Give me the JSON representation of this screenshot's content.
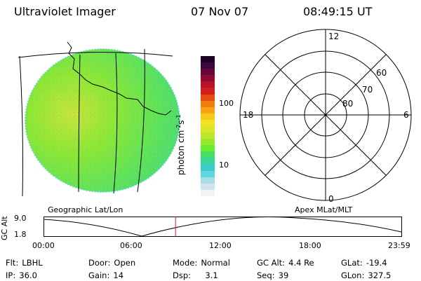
{
  "header": {
    "title": "Ultraviolet Imager",
    "date": "07 Nov 07",
    "time": "08:49:15 UT"
  },
  "colorbar": {
    "label": "photon cm",
    "label_sup1": "-2",
    "label_s": "s",
    "label_sup2": "-1",
    "ticks": [
      "100",
      "10"
    ],
    "colors": [
      "#f4f4f4",
      "#d0e4ea",
      "#a8dde8",
      "#5fd6e0",
      "#3ec8d0",
      "#39d7a0",
      "#46e060",
      "#6bea33",
      "#95e82b",
      "#bde52a",
      "#dbe428",
      "#f0e226",
      "#f8c718",
      "#f8a310",
      "#f27e10",
      "#e44c10",
      "#d51d1d",
      "#b81228",
      "#8f0a30",
      "#66083b",
      "#3a0a3c",
      "#1a0422"
    ]
  },
  "geo_label": "Geographic Lat/Lon",
  "apex_label": "Apex MLat/MLT",
  "polar": {
    "mlt_labels": {
      "top": "12",
      "left": "18",
      "right": "6",
      "bottom": "0"
    },
    "lat_labels": [
      "60",
      "70",
      "80"
    ]
  },
  "altitude_plot": {
    "ylabel": "GC Alt",
    "ytick_top": "9.0",
    "ytick_bottom": "1.8",
    "xticks": [
      "00:00",
      "06:00",
      "12:00",
      "18:00",
      "23:59"
    ],
    "current_time_fraction": 0.368,
    "marker_color": "#d01c1c"
  },
  "status": {
    "filter_label": "Flt:",
    "filter_value": "LBHL",
    "door_label": "Door:",
    "door_value": "Open",
    "mode_label": "Mode:",
    "mode_value": "Normal",
    "gcalt_label": "GC Alt:",
    "gcalt_value": "4.4 Re",
    "glat_label": "GLat:",
    "glat_value": "-19.4",
    "ip_label": "IP:",
    "ip_value": "36.0",
    "gain_label": "Gain:",
    "gain_value": "14",
    "dsp_label": "Dsp:",
    "dsp_value": "3.1",
    "seq_label": "Seq:",
    "seq_value": "39",
    "glon_label": "GLon:",
    "glon_value": "327.5"
  }
}
